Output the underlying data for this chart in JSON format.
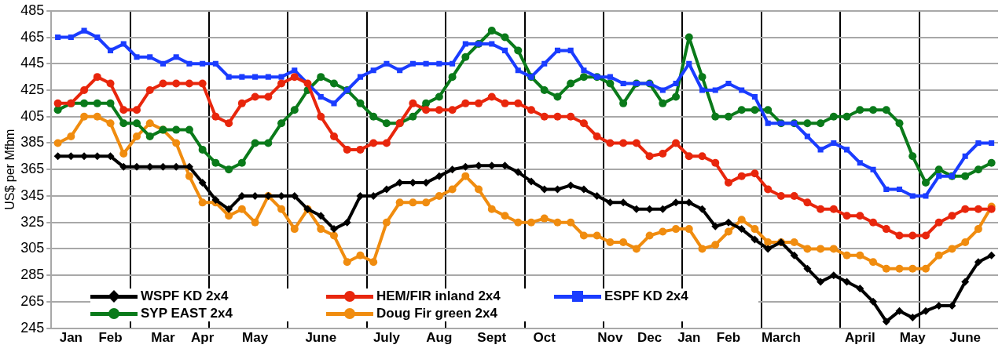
{
  "chart_data": {
    "type": "line",
    "ylabel": "US$ per Mfbm",
    "categories": [
      null,
      "Jan",
      null,
      null,
      "Feb",
      null,
      null,
      null,
      "Mar",
      null,
      null,
      "Apr",
      null,
      null,
      null,
      "May",
      null,
      null,
      null,
      null,
      "June",
      null,
      null,
      null,
      null,
      "July",
      null,
      null,
      null,
      "Aug",
      null,
      null,
      null,
      "Sept",
      null,
      null,
      null,
      "Oct",
      null,
      null,
      null,
      null,
      "Nov",
      null,
      null,
      "Dec",
      null,
      null,
      "Jan",
      null,
      null,
      "Feb",
      null,
      null,
      null,
      "March",
      null,
      null,
      null,
      null,
      null,
      "April",
      null,
      null,
      null,
      "May",
      null,
      null,
      null,
      "June",
      null,
      null
    ],
    "series": [
      {
        "name": "WSPF KD 2x4",
        "color": "#000000",
        "marker": "diamond",
        "values": [
          375,
          375,
          375,
          375,
          375,
          367,
          367,
          367,
          367,
          367,
          367,
          355,
          342,
          335,
          345,
          345,
          345,
          345,
          345,
          335,
          330,
          320,
          325,
          345,
          345,
          350,
          355,
          355,
          355,
          360,
          365,
          367,
          368,
          368,
          368,
          363,
          356,
          350,
          350,
          353,
          350,
          345,
          340,
          340,
          335,
          335,
          335,
          340,
          340,
          335,
          322,
          325,
          320,
          312,
          305,
          310,
          300,
          290,
          280,
          285,
          280,
          275,
          265,
          250,
          258,
          253,
          258,
          262,
          262,
          280,
          295,
          300
        ]
      },
      {
        "name": "HEM/FIR inland 2x4",
        "color": "#e8260c",
        "marker": "circle",
        "values": [
          415,
          415,
          425,
          435,
          430,
          410,
          410,
          425,
          430,
          430,
          430,
          430,
          405,
          400,
          415,
          420,
          420,
          430,
          435,
          430,
          405,
          390,
          380,
          380,
          385,
          385,
          400,
          415,
          410,
          410,
          410,
          415,
          415,
          420,
          415,
          415,
          410,
          405,
          405,
          405,
          400,
          390,
          385,
          385,
          385,
          375,
          377,
          385,
          375,
          375,
          370,
          355,
          360,
          362,
          350,
          345,
          345,
          340,
          335,
          335,
          330,
          330,
          325,
          320,
          315,
          315,
          315,
          325,
          330,
          335,
          335,
          335
        ]
      },
      {
        "name": "ESPF KD 2x4",
        "color": "#1a3cff",
        "marker": "square",
        "values": [
          465,
          465,
          470,
          465,
          455,
          460,
          450,
          450,
          445,
          450,
          445,
          445,
          445,
          435,
          435,
          435,
          435,
          435,
          440,
          430,
          420,
          415,
          425,
          435,
          440,
          445,
          440,
          445,
          445,
          445,
          445,
          460,
          460,
          460,
          455,
          440,
          435,
          445,
          455,
          455,
          440,
          435,
          435,
          430,
          430,
          430,
          425,
          430,
          445,
          425,
          425,
          430,
          425,
          420,
          400,
          400,
          400,
          390,
          380,
          385,
          380,
          370,
          365,
          350,
          350,
          345,
          345,
          360,
          360,
          375,
          385,
          385
        ]
      },
      {
        "name": "SYP EAST 2x4",
        "color": "#0a7a1a",
        "marker": "circle",
        "values": [
          410,
          415,
          415,
          415,
          415,
          400,
          400,
          390,
          395,
          395,
          395,
          380,
          370,
          365,
          370,
          385,
          385,
          400,
          410,
          425,
          435,
          430,
          425,
          415,
          405,
          400,
          400,
          405,
          415,
          420,
          435,
          450,
          460,
          470,
          465,
          455,
          435,
          425,
          420,
          430,
          435,
          435,
          430,
          415,
          430,
          430,
          415,
          420,
          465,
          435,
          405,
          405,
          410,
          410,
          410,
          400,
          400,
          400,
          400,
          405,
          405,
          410,
          410,
          410,
          400,
          375,
          355,
          365,
          360,
          360,
          365,
          370
        ]
      },
      {
        "name": "Doug Fir green 2x4",
        "color": "#f08c0f",
        "marker": "circle",
        "values": [
          385,
          390,
          405,
          405,
          400,
          377,
          390,
          400,
          395,
          385,
          360,
          340,
          340,
          330,
          335,
          325,
          345,
          335,
          320,
          335,
          320,
          315,
          295,
          300,
          295,
          325,
          340,
          340,
          340,
          345,
          350,
          360,
          350,
          335,
          330,
          325,
          325,
          328,
          325,
          325,
          315,
          315,
          310,
          310,
          305,
          315,
          318,
          320,
          320,
          305,
          308,
          318,
          327,
          320,
          310,
          310,
          310,
          305,
          305,
          305,
          300,
          300,
          295,
          290,
          290,
          290,
          290,
          300,
          305,
          310,
          320,
          337
        ]
      }
    ],
    "ylim": [
      245,
      485
    ],
    "yticks": [
      245,
      265,
      285,
      305,
      325,
      345,
      365,
      385,
      405,
      425,
      445,
      465,
      485
    ],
    "grid": true,
    "legend": "bottom left",
    "line_style": "solid"
  }
}
